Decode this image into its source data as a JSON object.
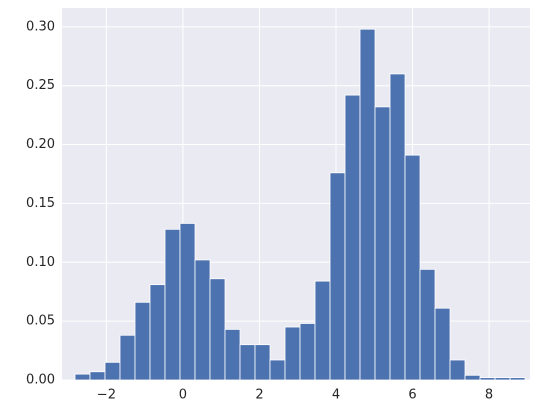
{
  "chart_data": {
    "type": "histogram",
    "bins": [
      -2.82,
      -2.428,
      -2.036,
      -1.644,
      -1.252,
      -0.86,
      -0.468,
      -0.076,
      0.316,
      0.708,
      1.1,
      1.492,
      1.884,
      2.276,
      2.668,
      3.06,
      3.452,
      3.844,
      4.236,
      4.628,
      5.02,
      5.412,
      5.804,
      6.196,
      6.588,
      6.98,
      7.372,
      7.764,
      8.156,
      8.548,
      8.94
    ],
    "values": [
      0.005,
      0.007,
      0.015,
      0.038,
      0.066,
      0.081,
      0.128,
      0.133,
      0.102,
      0.086,
      0.043,
      0.03,
      0.03,
      0.017,
      0.045,
      0.048,
      0.084,
      0.176,
      0.242,
      0.298,
      0.232,
      0.26,
      0.191,
      0.094,
      0.061,
      0.017,
      0.004,
      0.002,
      0.002,
      0.002
    ],
    "color": "#4c72b0",
    "xlim": [
      -3.16,
      9.07
    ],
    "ylim": [
      0,
      0.316
    ],
    "xticks": [
      {
        "value": -2,
        "label": "−2"
      },
      0,
      2,
      4,
      6,
      8
    ],
    "yticks": [
      {
        "value": 0,
        "label": "0.00"
      },
      {
        "value": 0.05,
        "label": "0.05"
      },
      {
        "value": 0.1,
        "label": "0.10"
      },
      {
        "value": 0.15,
        "label": "0.15"
      },
      {
        "value": 0.2,
        "label": "0.20"
      },
      {
        "value": 0.25,
        "label": "0.25"
      },
      {
        "value": 0.3,
        "label": "0.30"
      }
    ],
    "grid": true
  }
}
